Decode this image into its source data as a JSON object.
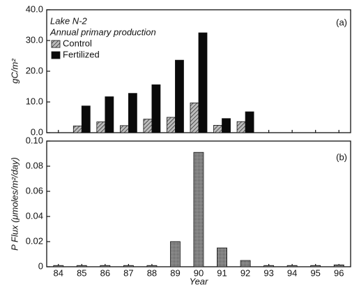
{
  "chart_data": [
    {
      "type": "bar",
      "label": "(a)",
      "title": "Lake N-2",
      "subtitle": "Annual primary production",
      "y_label": "gC/m²",
      "ylim": [
        0,
        40
      ],
      "yticks": [
        {
          "value": 0,
          "label": "0.0"
        },
        {
          "value": 10,
          "label": "10.0"
        },
        {
          "value": 20,
          "label": "20.0"
        },
        {
          "value": 30,
          "label": "30.0"
        },
        {
          "value": 40,
          "label": "40.0"
        }
      ],
      "series": [
        {
          "name": "Control",
          "color": "#bdbdbd",
          "values": [
            null,
            2.2,
            3.5,
            2.3,
            4.4,
            5.0,
            9.7,
            2.4,
            3.6,
            null,
            null,
            null,
            null
          ]
        },
        {
          "name": "Fertilized",
          "color": "#0a0a0a",
          "values": [
            null,
            8.7,
            11.7,
            12.8,
            15.6,
            23.6,
            32.5,
            4.6,
            6.8,
            null,
            null,
            null,
            null
          ]
        }
      ]
    },
    {
      "type": "bar",
      "label": "(b)",
      "y_label": "P Flux (μmoles/m²/day)",
      "x_label": "Year",
      "categories": [
        "84",
        "85",
        "86",
        "87",
        "88",
        "89",
        "90",
        "91",
        "92",
        "93",
        "94",
        "95",
        "96"
      ],
      "ylim": [
        0,
        0.1
      ],
      "yticks": [
        0,
        0.02,
        0.04,
        0.06,
        0.08,
        {
          "value": 0.1,
          "label": "0.10"
        }
      ],
      "color": "#9a9a9a",
      "values": [
        0.001,
        0.001,
        0.001,
        0.001,
        0.001,
        0.02,
        0.091,
        0.015,
        0.005,
        0.001,
        0.001,
        0.001,
        0.0015
      ]
    }
  ]
}
